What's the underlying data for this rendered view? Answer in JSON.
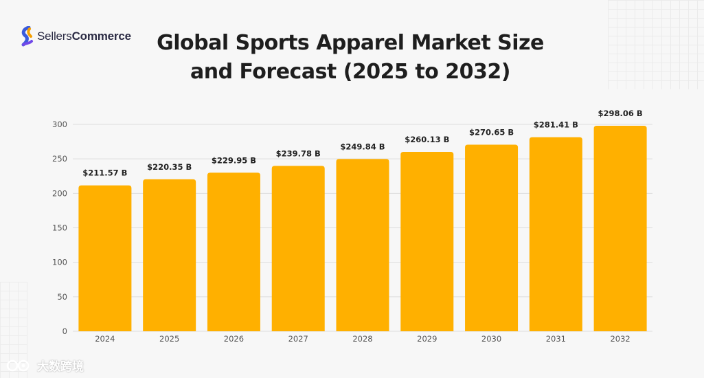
{
  "logo": {
    "brand_light": "Sellers",
    "brand_bold": "Commerce"
  },
  "title_line1": "Global Sports Apparel Market Size",
  "title_line2": "and Forecast (2025 to 2032)",
  "watermark": "大数跨境",
  "colors": {
    "bar": "#FFB000",
    "grid": "#dcdcdc",
    "axis_text": "#555555",
    "label_text": "#222222"
  },
  "chart_data": {
    "type": "bar",
    "title": "Global Sports Apparel Market Size and Forecast (2025 to 2032)",
    "categories": [
      "2024",
      "2025",
      "2026",
      "2027",
      "2028",
      "2029",
      "2030",
      "2031",
      "2032"
    ],
    "values": [
      211.57,
      220.35,
      229.95,
      239.78,
      249.84,
      260.13,
      270.65,
      281.41,
      298.06
    ],
    "data_labels": [
      "$211.57 B",
      "$220.35 B",
      "$229.95 B",
      "$239.78 B",
      "$249.84 B",
      "$260.13 B",
      "$270.65 B",
      "$281.41 B",
      "$298.06 B"
    ],
    "yticks": [
      0,
      50,
      100,
      150,
      200,
      250,
      300
    ],
    "ylim": [
      0,
      300
    ],
    "xlabel": "",
    "ylabel": "",
    "grid": true
  }
}
